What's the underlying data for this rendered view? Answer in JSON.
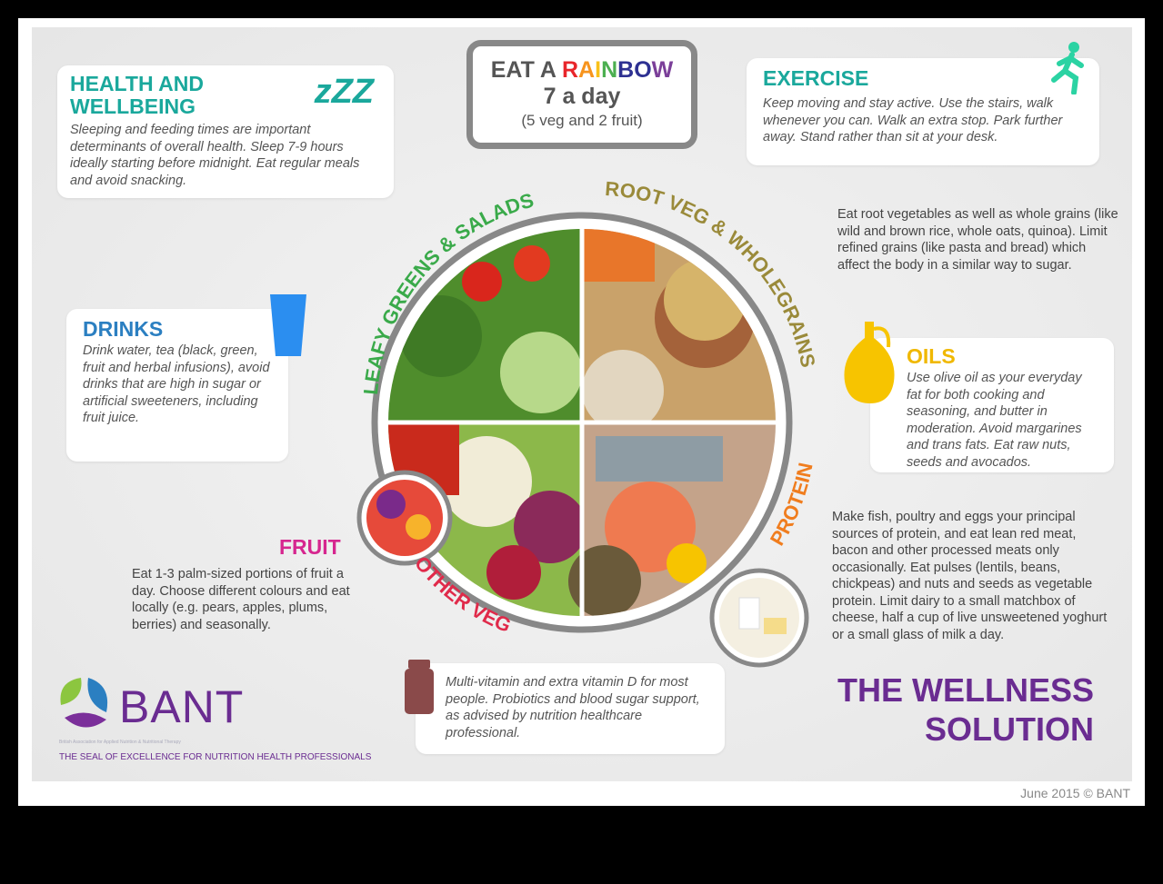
{
  "title_box": {
    "line1_prefix": "EAT A ",
    "rainbow_letters": [
      "R",
      "A",
      "I",
      "N",
      "B",
      "O",
      "W"
    ],
    "rainbow_colors": [
      "#e8262b",
      "#f7941d",
      "#f9c11a",
      "#4caf50",
      "#2e3192",
      "#2e3192",
      "#7b3f99"
    ],
    "line2": "7 a day",
    "line3": "(5 veg and 2 fruit)"
  },
  "health": {
    "title": "HEALTH AND WELLBEING",
    "icon_text": "zZZ",
    "text": "Sleeping and feeding times are important determinants of overall health. Sleep 7-9 hours ideally starting before midnight. Eat regular meals and avoid snacking."
  },
  "exercise": {
    "title": "EXERCISE",
    "text": "Keep moving and stay active. Use the stairs, walk whenever you can. Walk an extra stop. Park further away. Stand rather than sit at your desk."
  },
  "drinks": {
    "title": "DRINKS",
    "text": "Drink water, tea (black, green, fruit and herbal infusions), avoid drinks that are high in sugar or artificial sweeteners, including fruit juice."
  },
  "root": {
    "text": "Eat root vegetables as well as whole grains (like wild and brown rice, whole oats, quinoa). Limit refined grains (like pasta and bread) which affect the body in a similar way to sugar."
  },
  "oils": {
    "title": "OILS",
    "text": "Use olive oil as your everyday fat for both cooking and seasoning, and butter in moderation. Avoid margarines and trans fats. Eat raw nuts, seeds and avocados."
  },
  "protein": {
    "text": "Make fish, poultry and eggs your principal sources of protein, and eat lean red meat, bacon and other processed meats only occasionally. Eat pulses (lentils, beans, chickpeas) and nuts and seeds as vegetable protein. Limit dairy to a small matchbox of cheese, half a cup of live unsweetened yoghurt or a small glass of milk a day."
  },
  "fruit": {
    "title": "FRUIT",
    "text": "Eat 1-3 palm-sized portions of fruit a day. Choose different colours and eat locally (e.g. pears, apples, plums, berries) and seasonally."
  },
  "supplements": {
    "text": "Multi-vitamin and extra vitamin D for most people. Probiotics and blood sugar support, as advised by nutrition healthcare professional."
  },
  "plate_labels": {
    "leafy": "LEAFY GREENS & SALADS",
    "root": "ROOT VEG & WHOLEGRAINS",
    "protein": "PROTEIN",
    "other": "OTHER VEG"
  },
  "brand": {
    "logo": "BANT",
    "logo_sub": "British Association for Applied Nutrition & Nutritional Therapy",
    "tagline": "THE SEAL OF EXCELLENCE FOR NUTRITION HEALTH PROFESSIONALS",
    "wellness_line1": "THE WELLNESS",
    "wellness_line2": "SOLUTION"
  },
  "footer": "June 2015 © BANT",
  "colors": {
    "teal": "#1aa89c",
    "blue": "#2b7fc1",
    "magenta": "#d6268f",
    "purple": "#6a2c91",
    "olive": "#9a8a3a",
    "orange": "#f07d1e",
    "red": "#e02a4a",
    "green": "#3aaa4a"
  }
}
